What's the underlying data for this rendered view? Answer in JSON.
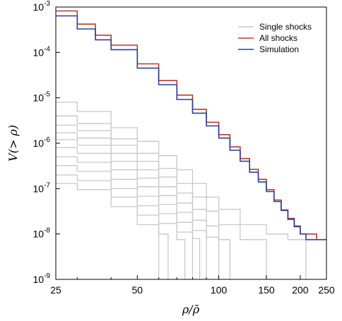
{
  "chart_data": {
    "type": "line",
    "title": "",
    "xlabel": "ρ/ρ̄",
    "ylabel": "V(> ρ)",
    "x_scale": "log",
    "y_scale": "log",
    "xlim": [
      25,
      250
    ],
    "ylim": [
      1e-09,
      0.001
    ],
    "x_ticks": [
      25,
      50,
      100,
      150,
      200,
      250
    ],
    "x_tick_labels": [
      "25",
      "50",
      "100",
      "150",
      "200",
      "250"
    ],
    "y_ticks": [
      1e-09,
      1e-08,
      1e-07,
      1e-06,
      1e-05,
      0.0001,
      0.001
    ],
    "y_tick_labels": [
      {
        "base": "10",
        "exp": "-9"
      },
      {
        "base": "10",
        "exp": "-8"
      },
      {
        "base": "10",
        "exp": "-7"
      },
      {
        "base": "10",
        "exp": "-6"
      },
      {
        "base": "10",
        "exp": "-5"
      },
      {
        "base": "10",
        "exp": "-4"
      },
      {
        "base": "10",
        "exp": "-3"
      }
    ],
    "grid": false,
    "legend_position": "top-right",
    "legend": [
      {
        "label": "Single shocks",
        "color": "#c8c8c8"
      },
      {
        "label": "All shocks",
        "color": "#c0392b"
      },
      {
        "label": "Simulation",
        "color": "#2c3e9a"
      }
    ],
    "series": [
      {
        "name": "All shocks",
        "color": "#c0392b",
        "x": [
          25,
          30,
          35,
          40,
          50,
          60,
          70,
          80,
          90,
          100,
          110,
          120,
          130,
          140,
          150,
          160,
          170,
          180,
          190,
          200,
          210,
          220,
          225,
          230
        ],
        "y": [
          0.00082,
          0.00042,
          0.00024,
          0.000145,
          5.6e-05,
          2.4e-05,
          1.15e-05,
          5.6e-06,
          2.9e-06,
          1.55e-06,
          8.3e-07,
          4.6e-07,
          2.65e-07,
          1.6e-07,
          9.5e-08,
          5.6e-08,
          3.4e-08,
          2.2e-08,
          1.5e-08,
          1e-08,
          1e-08,
          1e-08,
          1e-08,
          7.5e-09
        ]
      },
      {
        "name": "Simulation",
        "color": "#2c3e9a",
        "x": [
          25,
          30,
          35,
          40,
          50,
          60,
          70,
          80,
          90,
          100,
          110,
          120,
          130,
          140,
          150,
          160,
          170,
          180,
          190,
          200,
          210,
          220,
          230,
          250
        ],
        "y": [
          0.00064,
          0.00033,
          0.00019,
          0.000115,
          4.5e-05,
          1.95e-05,
          9.2e-06,
          4.6e-06,
          2.4e-06,
          1.3e-06,
          7e-07,
          4e-07,
          2.3e-07,
          1.4e-07,
          8.6e-08,
          5.2e-08,
          3.3e-08,
          2.1e-08,
          1.45e-08,
          1e-08,
          7.5e-09,
          7.5e-09,
          7.5e-09,
          7.5e-09
        ]
      },
      {
        "name": "Single shocks",
        "color": "#c8c8c8",
        "x": [
          25,
          30,
          40,
          50,
          60,
          70,
          80,
          90,
          100,
          120,
          150,
          180,
          210
        ],
        "y": [
          8e-06,
          5e-06,
          2.2e-06,
          1.1e-06,
          5.3e-07,
          2.6e-07,
          1.3e-07,
          6.5e-08,
          3.5e-08,
          1.6e-08,
          1e-08,
          7.5e-09,
          7.5e-09
        ]
      },
      {
        "x": [
          25,
          30,
          40,
          50,
          60,
          70,
          80,
          90,
          100,
          120,
          150
        ],
        "y": [
          4e-06,
          2.7e-06,
          1.25e-06,
          6e-07,
          2.8e-07,
          1.3e-07,
          6.5e-08,
          3.2e-08,
          1.6e-08,
          7.5e-09,
          7.5e-09
        ]
      },
      {
        "x": [
          25,
          30,
          40,
          50,
          60,
          70,
          80,
          90,
          100,
          110
        ],
        "y": [
          2.5e-06,
          1.9e-06,
          9e-07,
          4e-07,
          1.8e-07,
          8e-08,
          3.5e-08,
          1.5e-08,
          7.5e-09,
          7.5e-09
        ]
      },
      {
        "x": [
          25,
          30,
          40,
          50,
          60,
          70,
          80,
          90,
          100
        ],
        "y": [
          1.7e-06,
          1.3e-06,
          6e-07,
          2.6e-07,
          1.1e-07,
          4.8e-08,
          2e-08,
          8.5e-09,
          7.5e-09
        ]
      },
      {
        "x": [
          25,
          30,
          40,
          50,
          60,
          70,
          80,
          90
        ],
        "y": [
          1.2e-06,
          9e-07,
          4e-07,
          1.7e-07,
          7e-08,
          3e-08,
          1.2e-08,
          7.5e-09
        ]
      },
      {
        "x": [
          25,
          30,
          40,
          50,
          60,
          70,
          80,
          85
        ],
        "y": [
          8e-07,
          6e-07,
          2.6e-07,
          1.1e-07,
          4.5e-08,
          1.8e-08,
          8e-09,
          7.5e-09
        ]
      },
      {
        "x": [
          25,
          30,
          40,
          50,
          60,
          70,
          80
        ],
        "y": [
          5e-07,
          3.8e-07,
          1.6e-07,
          6.8e-08,
          2.8e-08,
          1.1e-08,
          7.5e-09
        ]
      },
      {
        "x": [
          25,
          30,
          40,
          50,
          60,
          70,
          75
        ],
        "y": [
          3.2e-07,
          2.4e-07,
          1e-07,
          4.2e-08,
          1.7e-08,
          7.5e-09,
          7.5e-09
        ]
      },
      {
        "x": [
          25,
          30,
          40,
          50,
          60,
          65
        ],
        "y": [
          2e-07,
          1.5e-07,
          6.5e-08,
          2.6e-08,
          1e-08,
          7.5e-09
        ]
      },
      {
        "x": [
          25,
          30,
          40,
          50,
          60
        ],
        "y": [
          1.3e-07,
          9.5e-08,
          4e-08,
          1.6e-08,
          7.5e-09
        ]
      }
    ]
  }
}
